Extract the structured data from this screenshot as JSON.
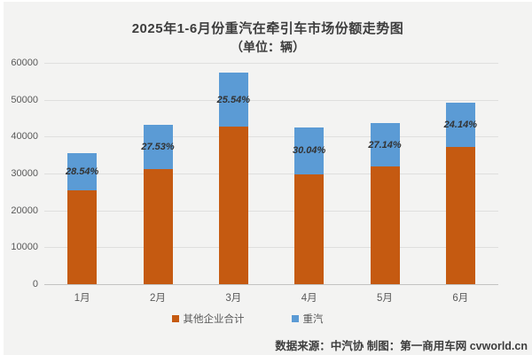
{
  "title": "2025年1-6月份重汽在牵引车市场份额走势图",
  "subtitle": "（单位：辆）",
  "footer": "数据来源：中汽协  制图：第一商用车网 cvworld.cn",
  "legend": [
    {
      "label": "其他企业合计",
      "color": "#C55A11"
    },
    {
      "label": "重汽",
      "color": "#5B9BD5"
    }
  ],
  "colors": {
    "other": "#C55A11",
    "sinotruk": "#5B9BD5",
    "background": "#f3f3f2",
    "gridline": "#dfdfde",
    "tick_text": "#595959",
    "title_text": "#3d3d3d"
  },
  "chart_data": {
    "type": "bar",
    "stacked": true,
    "title": "2025年1-6月份重汽在牵引车市场份额走势图",
    "subtitle": "（单位：辆）",
    "categories": [
      "1月",
      "2月",
      "3月",
      "4月",
      "5月",
      "6月"
    ],
    "series": [
      {
        "name": "其他企业合计",
        "color": "#C55A11",
        "values": [
          25370,
          31230,
          42630,
          29770,
          31840,
          37250
        ]
      },
      {
        "name": "重汽",
        "color": "#5B9BD5",
        "values": [
          10130,
          11870,
          14620,
          12780,
          11860,
          11850
        ]
      }
    ],
    "totals": [
      35500,
      43100,
      57250,
      42550,
      43700,
      49100
    ],
    "share_labels": [
      "28.54%",
      "27.53%",
      "25.54%",
      "30.04%",
      "27.14%",
      "24.14%"
    ],
    "xlabel": "",
    "ylabel": "",
    "ylim": [
      0,
      60000
    ],
    "ytick_step": 10000,
    "yticks": [
      0,
      10000,
      20000,
      30000,
      40000,
      50000,
      60000
    ],
    "grid": true,
    "legend_position": "bottom"
  }
}
